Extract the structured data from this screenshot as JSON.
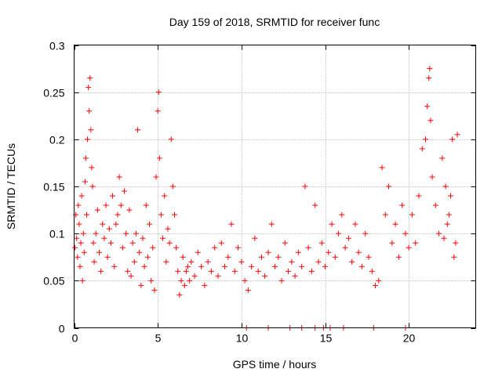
{
  "chart_data": {
    "type": "scatter",
    "title": "Day 159 of 2018, SRMTID for receiver func",
    "xlabel": "GPS time / hours",
    "ylabel": "SRMTID / TECUs",
    "xlim": [
      0,
      24
    ],
    "ylim": [
      0,
      0.3
    ],
    "x_ticks": [
      0,
      5,
      10,
      15,
      20
    ],
    "y_ticks": [
      0,
      0.05,
      0.1,
      0.15,
      0.2,
      0.25,
      0.3
    ],
    "x_tick_labels": [
      "0",
      "5",
      "10",
      "15",
      "20"
    ],
    "y_tick_labels": [
      "0",
      "0.05",
      "0.1",
      "0.15",
      "0.2",
      "0.25",
      "0.3"
    ],
    "grid": true,
    "marker": "+",
    "color": "#ff0000",
    "series": [
      {
        "points": [
          [
            0.05,
            0.085
          ],
          [
            0.1,
            0.12
          ],
          [
            0.15,
            0.095
          ],
          [
            0.2,
            0.075
          ],
          [
            0.25,
            0.13
          ],
          [
            0.3,
            0.11
          ],
          [
            0.35,
            0.065
          ],
          [
            0.4,
            0.09
          ],
          [
            0.45,
            0.14
          ],
          [
            0.5,
            0.05
          ],
          [
            0.55,
            0.1
          ],
          [
            0.6,
            0.08
          ],
          [
            0.65,
            0.155
          ],
          [
            0.7,
            0.18
          ],
          [
            0.75,
            0.12
          ],
          [
            0.8,
            0.2
          ],
          [
            0.85,
            0.255
          ],
          [
            0.9,
            0.23
          ],
          [
            0.95,
            0.265
          ],
          [
            1.0,
            0.21
          ],
          [
            1.05,
            0.17
          ],
          [
            1.1,
            0.15
          ],
          [
            1.15,
            0.09
          ],
          [
            1.2,
            0.07
          ],
          [
            1.3,
            0.1
          ],
          [
            1.4,
            0.125
          ],
          [
            1.5,
            0.08
          ],
          [
            1.6,
            0.06
          ],
          [
            1.7,
            0.11
          ],
          [
            1.8,
            0.095
          ],
          [
            1.9,
            0.13
          ],
          [
            2.0,
            0.075
          ],
          [
            2.1,
            0.105
          ],
          [
            2.2,
            0.09
          ],
          [
            2.3,
            0.14
          ],
          [
            2.4,
            0.065
          ],
          [
            2.5,
            0.11
          ],
          [
            2.6,
            0.12
          ],
          [
            2.7,
            0.16
          ],
          [
            2.8,
            0.13
          ],
          [
            2.9,
            0.085
          ],
          [
            3.0,
            0.145
          ],
          [
            3.1,
            0.1
          ],
          [
            3.2,
            0.06
          ],
          [
            3.3,
            0.125
          ],
          [
            3.4,
            0.055
          ],
          [
            3.5,
            0.09
          ],
          [
            3.6,
            0.07
          ],
          [
            3.7,
            0.1
          ],
          [
            3.8,
            0.21
          ],
          [
            3.9,
            0.08
          ],
          [
            4.0,
            0.045
          ],
          [
            4.1,
            0.095
          ],
          [
            4.2,
            0.065
          ],
          [
            4.3,
            0.13
          ],
          [
            4.4,
            0.075
          ],
          [
            4.5,
            0.11
          ],
          [
            4.6,
            0.05
          ],
          [
            4.7,
            0.085
          ],
          [
            4.8,
            0.04
          ],
          [
            4.9,
            0.16
          ],
          [
            5.0,
            0.23
          ],
          [
            5.05,
            0.25
          ],
          [
            5.1,
            0.18
          ],
          [
            5.2,
            0.12
          ],
          [
            5.3,
            0.095
          ],
          [
            5.4,
            0.14
          ],
          [
            5.5,
            0.07
          ],
          [
            5.6,
            0.105
          ],
          [
            5.7,
            0.09
          ],
          [
            5.8,
            0.2
          ],
          [
            5.9,
            0.15
          ],
          [
            6.0,
            0.12
          ],
          [
            6.1,
            0.085
          ],
          [
            6.2,
            0.06
          ],
          [
            6.3,
            0.035
          ],
          [
            6.4,
            0.05
          ],
          [
            6.5,
            0.075
          ],
          [
            6.6,
            0.045
          ],
          [
            6.7,
            0.06
          ],
          [
            6.8,
            0.065
          ],
          [
            6.9,
            0.05
          ],
          [
            7.0,
            0.07
          ],
          [
            7.2,
            0.055
          ],
          [
            7.4,
            0.08
          ],
          [
            7.6,
            0.065
          ],
          [
            7.8,
            0.045
          ],
          [
            8.0,
            0.07
          ],
          [
            8.2,
            0.06
          ],
          [
            8.4,
            0.085
          ],
          [
            8.6,
            0.055
          ],
          [
            8.8,
            0.09
          ],
          [
            9.0,
            0.065
          ],
          [
            9.2,
            0.075
          ],
          [
            9.4,
            0.11
          ],
          [
            9.6,
            0.06
          ],
          [
            9.8,
            0.085
          ],
          [
            10.0,
            0.07
          ],
          [
            10.2,
            0.05
          ],
          [
            10.4,
            0.04
          ],
          [
            10.6,
            0.065
          ],
          [
            10.8,
            0.095
          ],
          [
            11.0,
            0.06
          ],
          [
            11.2,
            0.075
          ],
          [
            11.4,
            0.055
          ],
          [
            11.6,
            0.08
          ],
          [
            11.8,
            0.11
          ],
          [
            12.0,
            0.065
          ],
          [
            12.2,
            0.075
          ],
          [
            12.4,
            0.05
          ],
          [
            12.6,
            0.09
          ],
          [
            12.8,
            0.06
          ],
          [
            13.0,
            0.07
          ],
          [
            13.2,
            0.055
          ],
          [
            13.4,
            0.08
          ],
          [
            13.6,
            0.065
          ],
          [
            13.8,
            0.15
          ],
          [
            14.0,
            0.085
          ],
          [
            14.2,
            0.06
          ],
          [
            14.4,
            0.13
          ],
          [
            14.6,
            0.07
          ],
          [
            14.8,
            0.09
          ],
          [
            15.0,
            0.065
          ],
          [
            15.2,
            0.08
          ],
          [
            15.4,
            0.11
          ],
          [
            15.6,
            0.075
          ],
          [
            15.8,
            0.1
          ],
          [
            16.0,
            0.12
          ],
          [
            16.2,
            0.085
          ],
          [
            16.4,
            0.095
          ],
          [
            16.6,
            0.07
          ],
          [
            16.8,
            0.11
          ],
          [
            17.0,
            0.08
          ],
          [
            17.2,
            0.065
          ],
          [
            17.4,
            0.1
          ],
          [
            17.6,
            0.075
          ],
          [
            17.8,
            0.06
          ],
          [
            18.0,
            0.045
          ],
          [
            18.2,
            0.05
          ],
          [
            18.4,
            0.17
          ],
          [
            18.6,
            0.12
          ],
          [
            18.8,
            0.15
          ],
          [
            19.0,
            0.09
          ],
          [
            19.2,
            0.11
          ],
          [
            19.4,
            0.075
          ],
          [
            19.6,
            0.13
          ],
          [
            19.8,
            0.1
          ],
          [
            20.0,
            0.085
          ],
          [
            20.2,
            0.12
          ],
          [
            20.4,
            0.09
          ],
          [
            20.6,
            0.14
          ],
          [
            20.8,
            0.19
          ],
          [
            21.0,
            0.2
          ],
          [
            21.1,
            0.235
          ],
          [
            21.2,
            0.265
          ],
          [
            21.25,
            0.275
          ],
          [
            21.3,
            0.22
          ],
          [
            21.4,
            0.16
          ],
          [
            21.6,
            0.13
          ],
          [
            21.8,
            0.1
          ],
          [
            22.0,
            0.18
          ],
          [
            22.2,
            0.15
          ],
          [
            22.4,
            0.12
          ],
          [
            22.6,
            0.2
          ],
          [
            22.8,
            0.09
          ],
          [
            22.9,
            0.205
          ],
          [
            22.7,
            0.075
          ],
          [
            22.5,
            0.14
          ],
          [
            22.3,
            0.11
          ],
          [
            22.1,
            0.095
          ],
          [
            10.3,
            0.0
          ],
          [
            11.6,
            0.0
          ],
          [
            13.6,
            0.0
          ],
          [
            14.4,
            0.0
          ],
          [
            15.3,
            0.0
          ],
          [
            16.1,
            0.0
          ],
          [
            19.8,
            0.0
          ],
          [
            17.9,
            0.0
          ],
          [
            14.9,
            0.0
          ],
          [
            12.9,
            0.0
          ]
        ]
      }
    ]
  }
}
